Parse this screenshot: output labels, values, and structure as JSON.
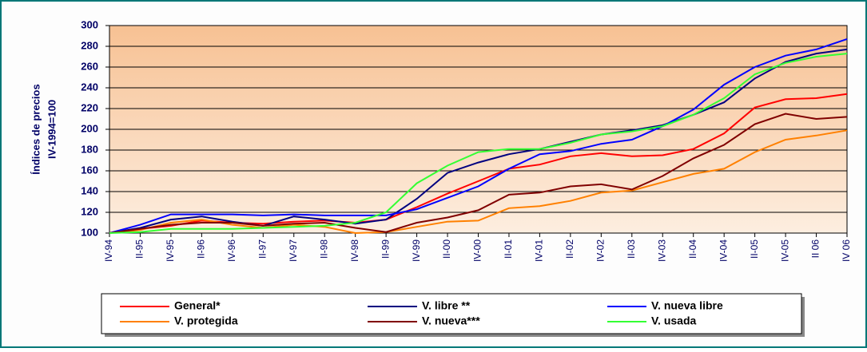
{
  "chart_data": {
    "type": "line",
    "y_axis_title": "Índices de precios",
    "y_axis_subtitle": "IV-1994=100",
    "categories": [
      "IV-94",
      "II-95",
      "IV-95",
      "II-96",
      "IV-96",
      "II-97",
      "IV-97",
      "II-98",
      "IV-98",
      "II-99",
      "IV-99",
      "II-00",
      "IV-00",
      "II-01",
      "IV-01",
      "II-02",
      "IV-02",
      "II-03",
      "IV-03",
      "II-04",
      "IV-04",
      "II-05",
      "IV-05",
      "II 06",
      "IV 06"
    ],
    "ylim": [
      100,
      300
    ],
    "yticks": [
      100,
      120,
      140,
      160,
      180,
      200,
      220,
      240,
      260,
      280,
      300
    ],
    "grid": true,
    "series": [
      {
        "name": "General*",
        "color": "#ff0000",
        "values": [
          100,
          104,
          107,
          112,
          110,
          109,
          111,
          112,
          110,
          113,
          125,
          138,
          150,
          162,
          166,
          174,
          177,
          174,
          175,
          181,
          196,
          221,
          229,
          230,
          234
        ]
      },
      {
        "name": "V. libre **",
        "color": "#000080",
        "values": [
          100,
          105,
          113,
          116,
          111,
          107,
          116,
          113,
          109,
          113,
          133,
          158,
          168,
          176,
          181,
          188,
          195,
          199,
          204,
          214,
          226,
          249,
          265,
          273,
          277
        ]
      },
      {
        "name": "V. nueva libre",
        "color": "#0000ff",
        "values": [
          100,
          108,
          118,
          118,
          118,
          117,
          118,
          117,
          117,
          117,
          123,
          134,
          145,
          162,
          176,
          179,
          186,
          190,
          203,
          219,
          243,
          260,
          271,
          277,
          287
        ]
      },
      {
        "name": "V. protegida",
        "color": "#ff8000",
        "values": [
          100,
          103,
          110,
          113,
          108,
          105,
          108,
          106,
          100,
          101,
          106,
          111,
          112,
          124,
          126,
          131,
          139,
          141,
          149,
          157,
          162,
          178,
          190,
          194,
          199
        ]
      },
      {
        "name": "V. nueva***",
        "color": "#800000",
        "values": [
          100,
          104,
          108,
          110,
          110,
          107,
          109,
          110,
          105,
          101,
          110,
          115,
          122,
          137,
          139,
          145,
          147,
          142,
          155,
          172,
          185,
          205,
          215,
          210,
          212
        ]
      },
      {
        "name": "V. usada",
        "color": "#33ff33",
        "values": [
          100,
          101,
          104,
          104,
          104,
          105,
          106,
          107,
          110,
          120,
          148,
          165,
          178,
          181,
          181,
          187,
          195,
          198,
          203,
          214,
          230,
          253,
          264,
          270,
          273
        ]
      }
    ]
  }
}
